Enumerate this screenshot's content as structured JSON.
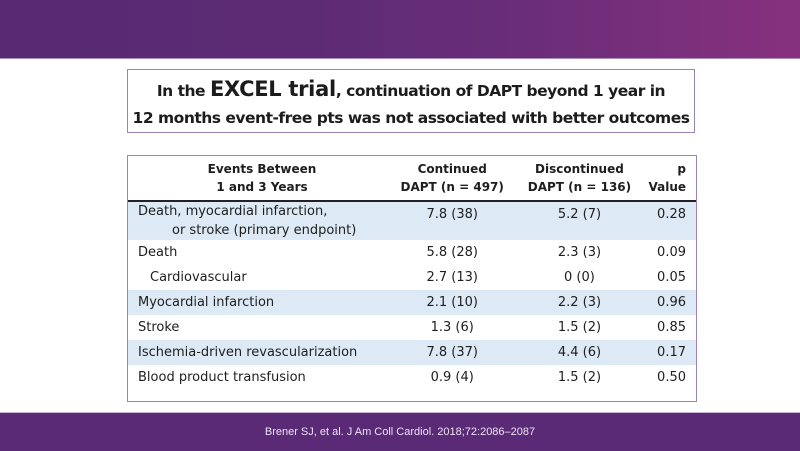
{
  "slide": {
    "title": {
      "line1_prefix": "In the ",
      "line1_emphasis": "EXCEL trial",
      "line1_suffix": ", continuation of DAPT beyond 1 year in",
      "line2": "12 months event-free pts was not associated with better outcomes"
    },
    "table": {
      "headers": {
        "event_line1": "Events Between",
        "event_line2": "1 and 3 Years",
        "continued_line1": "Continued",
        "continued_line2": "DAPT (n = 497)",
        "discontinued_line1": "Discontinued",
        "discontinued_line2": "DAPT (n = 136)",
        "p_value": "p Value"
      },
      "rows": [
        {
          "event_line1": "Death, myocardial infarction,",
          "event_line2": "or stroke (primary endpoint)",
          "continued": "7.8 (38)",
          "discontinued": "5.2 (7)",
          "p": "0.28",
          "shaded": true
        },
        {
          "event": "Death",
          "continued": "5.8 (28)",
          "discontinued": "2.3 (3)",
          "p": "0.09",
          "shaded": false
        },
        {
          "event": "Cardiovascular",
          "continued": "2.7 (13)",
          "discontinued": "0 (0)",
          "p": "0.05",
          "shaded": false,
          "indent": true
        },
        {
          "event": "Myocardial infarction",
          "continued": "2.1 (10)",
          "discontinued": "2.2 (3)",
          "p": "0.96",
          "shaded": true
        },
        {
          "event": "Stroke",
          "continued": "1.3 (6)",
          "discontinued": "1.5 (2)",
          "p": "0.85",
          "shaded": false
        },
        {
          "event": "Ischemia-driven revascularization",
          "continued": "7.8 (37)",
          "discontinued": "4.4 (6)",
          "p": "0.17",
          "shaded": true
        },
        {
          "event": "Blood product transfusion",
          "continued": "0.9 (4)",
          "discontinued": "1.5 (2)",
          "p": "0.50",
          "shaded": false
        }
      ]
    },
    "citation": "Brener SJ, et al. J Am Coll Cardiol. 2018;72:2086–2087",
    "colors": {
      "band_purple": "#5a2a76",
      "band_magenta": "#87317e",
      "border_lavender": "#9b82b8",
      "row_shade": "#ddeaf6"
    }
  }
}
